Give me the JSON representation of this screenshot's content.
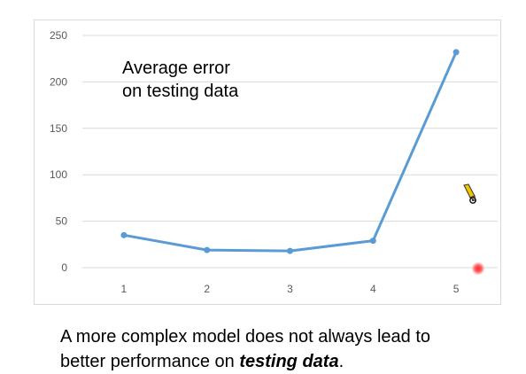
{
  "chart_data": {
    "type": "line",
    "annotation": [
      "Average error",
      "on testing data"
    ],
    "x": [
      1,
      2,
      3,
      4,
      5
    ],
    "series": [
      {
        "values": [
          35,
          19,
          18,
          29,
          232
        ]
      }
    ],
    "xlim": [
      0.5,
      5.5
    ],
    "ylim": [
      0,
      250
    ],
    "yticks": [
      0,
      50,
      100,
      150,
      200,
      250
    ],
    "xticks": [
      1,
      2,
      3,
      4,
      5
    ],
    "grid": "horizontal",
    "legend": "none",
    "colors": {
      "line": "#5b9bd5",
      "grid": "#d9d9d9",
      "tick_label": "#595959"
    }
  },
  "caption": {
    "prefix": "A more complex model does not always lead to",
    "line2_prefix": "better performance on ",
    "emphasis": "testing data",
    "suffix": "."
  },
  "overlay": {
    "pointer_icon": "pencil-icon",
    "laser_icon": "laser-pointer-icon"
  }
}
